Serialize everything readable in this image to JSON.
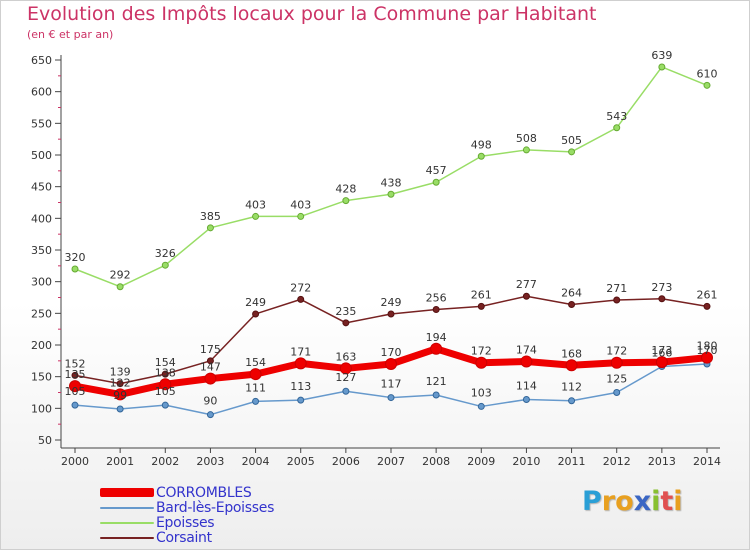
{
  "title": "Evolution des Impôts locaux pour la Commune par Habitant",
  "subtitle": "(en € et par an)",
  "logo": {
    "letters": [
      "P",
      "r",
      "o",
      "x",
      "i",
      "t",
      "i"
    ],
    "colors": [
      "#2a9fd6",
      "#e8a020",
      "#e8a020",
      "#3a66c4",
      "#88c030",
      "#e05050",
      "#e8a020"
    ]
  },
  "chart_data": {
    "type": "line",
    "title": "Evolution des Impôts locaux pour la Commune par Habitant",
    "subtitle": "(en € et par an)",
    "xlabel": "",
    "ylabel": "",
    "x": [
      "2000",
      "2001",
      "2002",
      "2003",
      "2004",
      "2005",
      "2006",
      "2007",
      "2008",
      "2009",
      "2010",
      "2011",
      "2012",
      "2013",
      "2014"
    ],
    "ylim": [
      50,
      650
    ],
    "yticks": [
      50,
      100,
      150,
      200,
      250,
      300,
      350,
      400,
      450,
      500,
      550,
      600,
      650
    ],
    "grid": false,
    "legend_position": "bottom-left",
    "series": [
      {
        "name": "CORROMBLES",
        "color": "#ee0000",
        "values": [
          135,
          122,
          138,
          147,
          154,
          171,
          163,
          170,
          194,
          172,
          174,
          168,
          172,
          173,
          180
        ]
      },
      {
        "name": "Bard-lès-Epoisses",
        "color": "#6699cc",
        "values": [
          105,
          99,
          105,
          90,
          111,
          113,
          127,
          117,
          121,
          103,
          114,
          112,
          125,
          166,
          170
        ]
      },
      {
        "name": "Epoisses",
        "color": "#99dd66",
        "values": [
          320,
          292,
          326,
          385,
          403,
          403,
          428,
          438,
          457,
          498,
          508,
          505,
          543,
          639,
          610
        ]
      },
      {
        "name": "Corsaint",
        "color": "#772222",
        "values": [
          152,
          139,
          154,
          175,
          249,
          272,
          235,
          249,
          256,
          261,
          277,
          264,
          271,
          273,
          261
        ]
      }
    ]
  }
}
